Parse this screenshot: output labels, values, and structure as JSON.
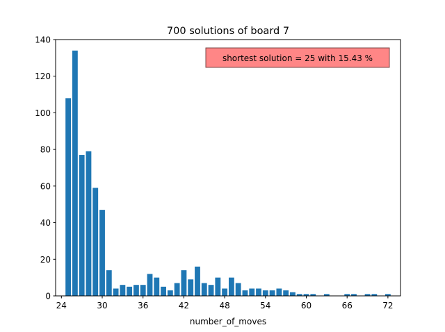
{
  "chart_data": {
    "type": "bar",
    "title": "700 solutions of board 7",
    "xlabel": "number_of_moves",
    "ylabel": "",
    "xlim": [
      23.15,
      73.85
    ],
    "ylim": [
      0,
      140
    ],
    "x_ticks": [
      24,
      30,
      36,
      42,
      48,
      54,
      60,
      66,
      72
    ],
    "y_ticks": [
      0,
      20,
      40,
      60,
      80,
      100,
      120,
      140
    ],
    "bar_color": "#1f77b4",
    "annotation": {
      "text": "shortest solution = 25 with 15.43 %",
      "placement": "top-right",
      "facecolor": "#ff7f7f",
      "edgecolor": "#7a4444"
    },
    "x": [
      25,
      26,
      27,
      28,
      29,
      30,
      31,
      32,
      33,
      34,
      35,
      36,
      37,
      38,
      39,
      40,
      41,
      42,
      43,
      44,
      45,
      46,
      47,
      48,
      49,
      50,
      51,
      52,
      53,
      54,
      55,
      56,
      57,
      58,
      59,
      60,
      61,
      63,
      66,
      67,
      69,
      70,
      72
    ],
    "values": [
      108,
      134,
      77,
      79,
      59,
      47,
      14,
      4,
      6,
      5,
      6,
      6,
      12,
      10,
      5,
      3,
      7,
      14,
      9,
      16,
      7,
      6,
      10,
      4,
      10,
      7,
      3,
      4,
      4,
      3,
      3,
      4,
      3,
      2,
      1,
      1,
      1,
      1,
      1,
      1,
      1,
      1,
      1
    ]
  }
}
